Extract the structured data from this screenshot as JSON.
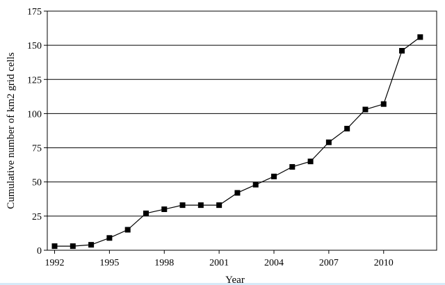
{
  "chart_data": {
    "type": "line",
    "title": "",
    "xlabel": "Year",
    "ylabel": "Cumulative number of km2 grid cells",
    "xlim": [
      1991.6,
      2012.9
    ],
    "ylim": [
      0,
      175
    ],
    "x_ticks": [
      1992,
      1995,
      1998,
      2001,
      2004,
      2007,
      2010
    ],
    "x_tick_labels": [
      "1992",
      "1995",
      "1998",
      "2001",
      "2004",
      "2007",
      "2010"
    ],
    "y_ticks": [
      0,
      25,
      50,
      75,
      100,
      125,
      150,
      175
    ],
    "y_tick_labels": [
      "0",
      "25",
      "50",
      "75",
      "100",
      "125",
      "150",
      "175"
    ],
    "grid": "horizontal",
    "marker": "square",
    "series": [
      {
        "x": [
          1992,
          1993,
          1994,
          1995,
          1996,
          1997,
          1998,
          1999,
          2000,
          2001,
          2002,
          2003,
          2004,
          2005,
          2006,
          2007,
          2008,
          2009,
          2010,
          2011,
          2012
        ],
        "values": [
          3,
          3,
          4,
          9,
          15,
          27,
          30,
          33,
          33,
          33,
          42,
          48,
          54,
          61,
          65,
          79,
          89,
          103,
          107,
          146,
          156
        ]
      }
    ],
    "colors": {
      "line": "#000000",
      "marker": "#000000",
      "grid": "#000000",
      "axis": "#000000"
    }
  }
}
